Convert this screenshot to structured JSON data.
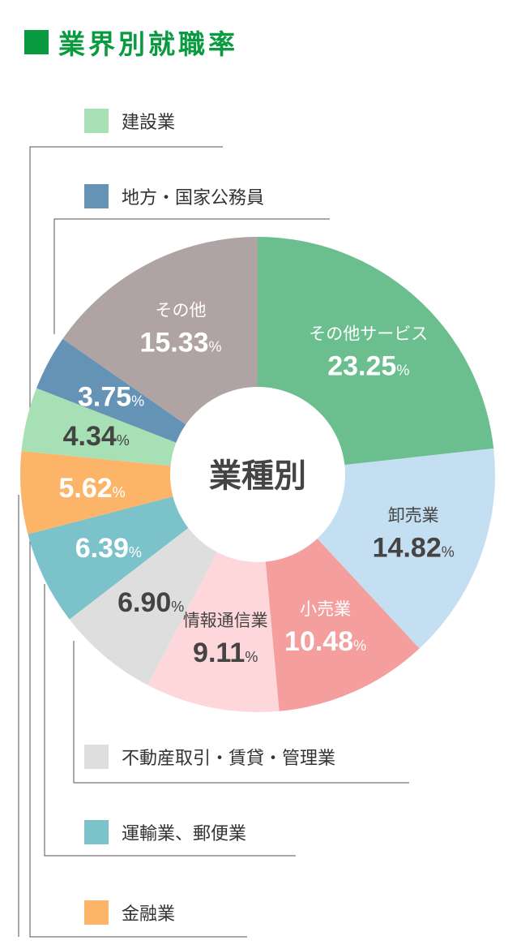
{
  "header": {
    "title": "業界別就職率"
  },
  "chart_data": {
    "type": "pie",
    "center_label": "業種別",
    "unit": "%",
    "slices": [
      {
        "name": "その他サービス",
        "value": 23.25,
        "value_text": "23.25",
        "color": "#6bbf8e",
        "text_color": "#ffffff",
        "label": "その他サービス"
      },
      {
        "name": "卸売業",
        "value": 14.82,
        "value_text": "14.82",
        "color": "#c4def2",
        "text_color": "#444444",
        "label": "卸売業"
      },
      {
        "name": "小売業",
        "value": 10.48,
        "value_text": "10.48",
        "color": "#f49e9e",
        "text_color": "#ffffff",
        "label": "小売業"
      },
      {
        "name": "情報通信業",
        "value": 9.11,
        "value_text": "9.11",
        "color": "#fdd7da",
        "text_color": "#444444",
        "label": "情報通信業"
      },
      {
        "name": "不動産取引・賃貸・管理業",
        "value": 6.9,
        "value_text": "6.90",
        "color": "#dedede",
        "text_color": "#444444",
        "label": ""
      },
      {
        "name": "運輸業、郵便業",
        "value": 6.39,
        "value_text": "6.39",
        "color": "#7cc2cb",
        "text_color": "#ffffff",
        "label": ""
      },
      {
        "name": "金融業",
        "value": 5.62,
        "value_text": "5.62",
        "color": "#fcb468",
        "text_color": "#ffffff",
        "label": ""
      },
      {
        "name": "建設業",
        "value": 4.34,
        "value_text": "4.34",
        "color": "#a8e0b6",
        "text_color": "#444444",
        "label": ""
      },
      {
        "name": "地方・国家公務員",
        "value": 3.75,
        "value_text": "3.75",
        "color": "#6593b6",
        "text_color": "#ffffff",
        "label": ""
      },
      {
        "name": "その他",
        "value": 15.33,
        "value_text": "15.33",
        "color": "#afa3a3",
        "text_color": "#ffffff",
        "label": "その他"
      }
    ]
  },
  "legend": [
    {
      "label": "建設業",
      "color": "#a8e0b6"
    },
    {
      "label": "地方・国家公務員",
      "color": "#6593b6"
    },
    {
      "label": "不動産取引・賃貸・管理業",
      "color": "#dedede"
    },
    {
      "label": "運輸業、郵便業",
      "color": "#7cc2cb"
    },
    {
      "label": "金融業",
      "color": "#fcb468"
    }
  ]
}
